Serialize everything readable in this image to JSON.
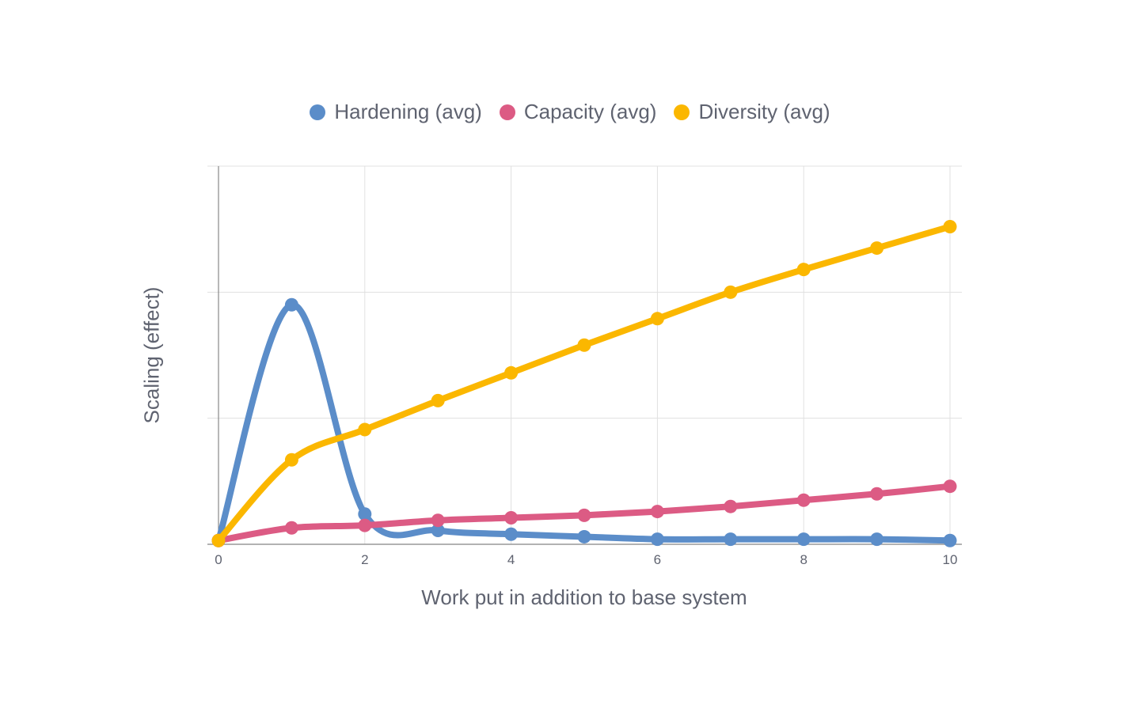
{
  "chart_data": {
    "type": "line",
    "title": "",
    "xlabel": "Work put in addition to base system",
    "ylabel": "Scaling (effect)",
    "xlim": [
      0,
      10
    ],
    "ylim": [
      0,
      3
    ],
    "x_ticks": [
      "0",
      "2",
      "4",
      "6",
      "8",
      "10"
    ],
    "y_ticks_labeled": false,
    "grid": true,
    "smooth": true,
    "legend_position": "top",
    "x": [
      0,
      1,
      2,
      3,
      4,
      5,
      6,
      7,
      8,
      9,
      10
    ],
    "series": [
      {
        "name": "Hardening (avg)",
        "color": "#5b8dc9",
        "values": [
          0.03,
          1.9,
          0.24,
          0.11,
          0.08,
          0.06,
          0.04,
          0.04,
          0.04,
          0.04,
          0.03
        ]
      },
      {
        "name": "Capacity (avg)",
        "color": "#dc5b84",
        "values": [
          0.03,
          0.13,
          0.15,
          0.19,
          0.21,
          0.23,
          0.26,
          0.3,
          0.35,
          0.4,
          0.46
        ]
      },
      {
        "name": "Diversity (avg)",
        "color": "#fbb700",
        "values": [
          0.03,
          0.67,
          0.91,
          1.14,
          1.36,
          1.58,
          1.79,
          2.0,
          2.18,
          2.35,
          2.52
        ]
      }
    ]
  }
}
